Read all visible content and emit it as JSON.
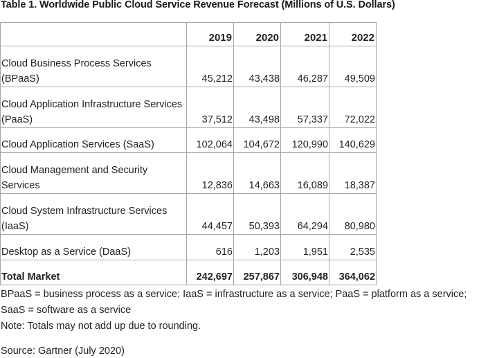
{
  "title": "Table 1. Worldwide Public Cloud Service Revenue Forecast (Millions of U.S. Dollars)",
  "table": {
    "headers": [
      "",
      "2019",
      "2020",
      "2021",
      "2022"
    ],
    "rows": [
      {
        "label": "Cloud Business Process Services (BPaaS)",
        "values": [
          "45,212",
          "43,438",
          "46,287",
          "49,509"
        ]
      },
      {
        "label": "Cloud Application Infrastructure Services (PaaS)",
        "values": [
          "37,512",
          "43,498",
          "57,337",
          "72,022"
        ]
      },
      {
        "label": "Cloud Application Services (SaaS)",
        "values": [
          "102,064",
          "104,672",
          "120,990",
          "140,629"
        ]
      },
      {
        "label": "Cloud Management and Security Services",
        "values": [
          "12,836",
          "14,663",
          "16,089",
          "18,387"
        ]
      },
      {
        "label": "Cloud System Infrastructure Services (IaaS)",
        "values": [
          "44,457",
          "50,393",
          "64,294",
          "80,980"
        ]
      },
      {
        "label": "Desktop as a Service (DaaS)",
        "values": [
          "616",
          "1,203",
          "1,951",
          "2,535"
        ]
      }
    ],
    "total": {
      "label": "Total Market",
      "values": [
        "242,697",
        "257,867",
        "306,948",
        "364,062"
      ]
    }
  },
  "notes": {
    "abbreviations": "BPaaS = business process as a service; IaaS = infrastructure as a service; PaaS = platform as a service; SaaS = software as a service",
    "rounding": "Note: Totals may not add up due to rounding."
  },
  "source": "Source: Gartner (July 2020)"
}
